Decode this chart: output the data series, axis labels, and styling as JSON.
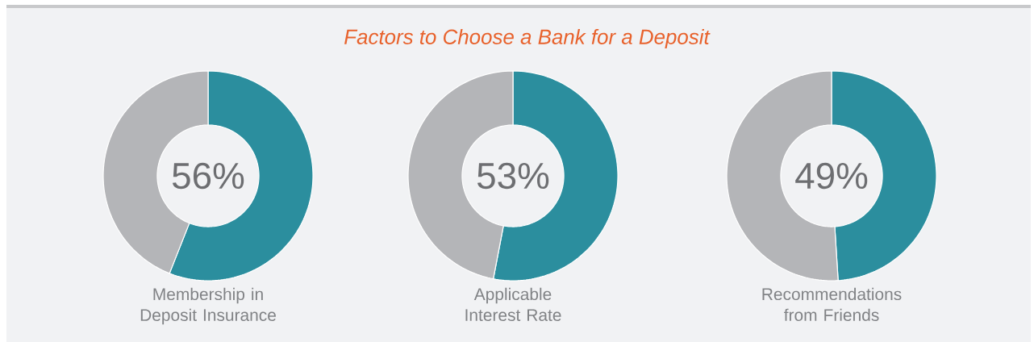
{
  "chart_data": [
    {
      "type": "other",
      "title": "Factors to Choose a Bank for a Deposit"
    },
    {
      "type": "donut",
      "categories": [
        null,
        null
      ],
      "values": [
        56,
        44
      ],
      "colors": [
        "#2b8e9e",
        "#b4b5b8"
      ],
      "annotations": [
        "56%"
      ],
      "xlabel": "Membership in Deposit Insurance"
    },
    {
      "type": "donut",
      "categories": [
        null,
        null
      ],
      "values": [
        53,
        47
      ],
      "colors": [
        "#2b8e9e",
        "#b4b5b8"
      ],
      "annotations": [
        "53%"
      ],
      "xlabel": "Applicable Interest Rate"
    },
    {
      "type": "donut",
      "categories": [
        null,
        null
      ],
      "values": [
        49,
        51
      ],
      "colors": [
        "#2b8e9e",
        "#b4b5b8"
      ],
      "annotations": [
        "49%"
      ],
      "xlabel": "Recommendations from Friends"
    }
  ]
}
